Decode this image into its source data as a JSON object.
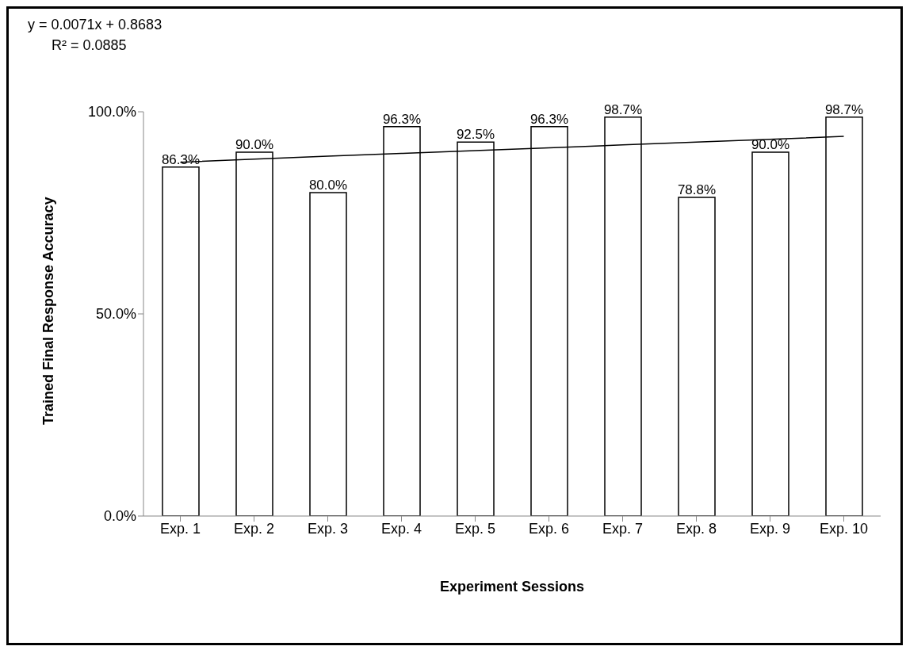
{
  "chart_data": {
    "type": "bar",
    "xlabel": "Experiment Sessions",
    "ylabel": "Trained Final Response Accuracy",
    "categories": [
      "Exp.  1",
      "Exp. 2",
      "Exp.  3",
      "Exp.  4",
      "Exp.  5",
      "Exp.  6",
      "Exp.  7",
      "Exp.  8",
      "Exp.  9",
      "Exp. 10"
    ],
    "series": [
      {
        "color": "#ffffff",
        "values": [
          86.3,
          90.0,
          80.0,
          96.3,
          92.5,
          96.3,
          98.7,
          78.8,
          90.0,
          98.7
        ],
        "value_labels": [
          "86.3%",
          "90.0%",
          "80.0%",
          "96.3%",
          "92.5%",
          "96.3%",
          "98.7%",
          "78.8%",
          "90.0%",
          "98.7%"
        ]
      },
      {
        "type": "line",
        "color": "#000000",
        "values": [
          87.5,
          88.3,
          89.0,
          89.7,
          90.4,
          91.1,
          91.8,
          92.5,
          93.2,
          93.9
        ]
      }
    ],
    "ylim": [
      0,
      100
    ],
    "yticks": [
      {
        "value": 0,
        "label": "0.0%"
      },
      {
        "value": 50,
        "label": "50.0%"
      },
      {
        "value": 100,
        "label": "100.0%"
      }
    ],
    "grid": false,
    "legend": false,
    "marker": "none",
    "line_style": "solid",
    "annotations": [
      "y = 0.0071x + 0.8683",
      "R² = 0.0885"
    ]
  }
}
